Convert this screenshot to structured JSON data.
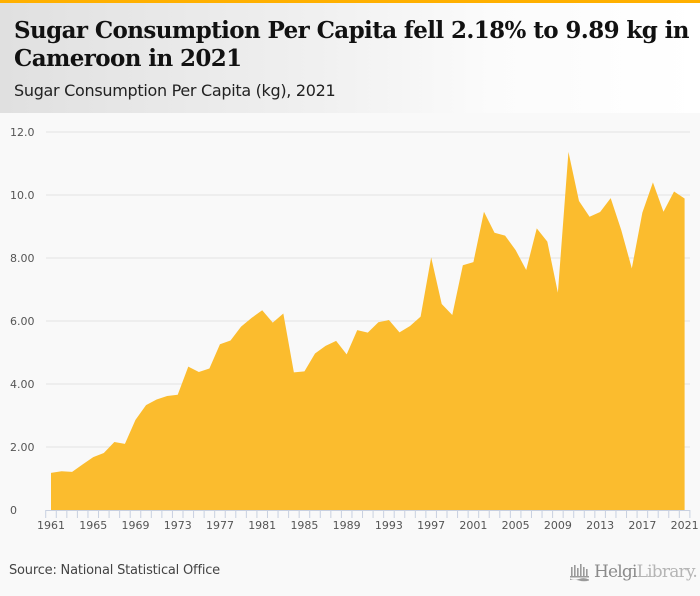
{
  "header": {
    "title": "Sugar Consumption Per Capita fell 2.18% to 9.89 kg in Cameroon in 2021",
    "subtitle": "Sugar Consumption Per Capita (kg), 2021"
  },
  "footer": {
    "source": "Source: National Statistical Office",
    "logo_primary": "Helgi",
    "logo_secondary": "Library."
  },
  "colors": {
    "accent_bar": "#ffb000",
    "area_fill": "#fbbc2e",
    "gridline": "#e2e2e2",
    "axis": "#c8d0e0",
    "tick_label": "#555555"
  },
  "chart_data": {
    "type": "area",
    "title": "Sugar Consumption Per Capita (kg), 2021",
    "xlabel": "",
    "ylabel": "",
    "ylim": [
      0,
      12
    ],
    "grid": true,
    "legend": "none",
    "y_ticks": [
      {
        "value": 0,
        "label": "0"
      },
      {
        "value": 2,
        "label": "2.00"
      },
      {
        "value": 4,
        "label": "4.00"
      },
      {
        "value": 6,
        "label": "6.00"
      },
      {
        "value": 8,
        "label": "8.00"
      },
      {
        "value": 10,
        "label": "10.0"
      },
      {
        "value": 12,
        "label": "12.0"
      }
    ],
    "x_tick_labels": [
      "1961",
      "1965",
      "1969",
      "1973",
      "1977",
      "1981",
      "1985",
      "1989",
      "1993",
      "1997",
      "2001",
      "2005",
      "2009",
      "2013",
      "2017",
      "2021"
    ],
    "x": [
      1961,
      1962,
      1963,
      1964,
      1965,
      1966,
      1967,
      1968,
      1969,
      1970,
      1971,
      1972,
      1973,
      1974,
      1975,
      1976,
      1977,
      1978,
      1979,
      1980,
      1981,
      1982,
      1983,
      1984,
      1985,
      1986,
      1987,
      1988,
      1989,
      1990,
      1991,
      1992,
      1993,
      1994,
      1995,
      1996,
      1997,
      1998,
      1999,
      2000,
      2001,
      2002,
      2003,
      2004,
      2005,
      2006,
      2007,
      2008,
      2009,
      2010,
      2011,
      2012,
      2013,
      2014,
      2015,
      2016,
      2017,
      2018,
      2019,
      2020,
      2021
    ],
    "series": [
      {
        "name": "Sugar Consumption Per Capita (kg)",
        "values": [
          1.18,
          1.23,
          1.21,
          1.45,
          1.68,
          1.81,
          2.16,
          2.1,
          2.86,
          3.33,
          3.51,
          3.62,
          3.66,
          4.55,
          4.38,
          4.49,
          5.26,
          5.38,
          5.82,
          6.1,
          6.34,
          5.95,
          6.24,
          4.37,
          4.4,
          4.97,
          5.21,
          5.37,
          4.94,
          5.71,
          5.63,
          5.96,
          6.03,
          5.64,
          5.84,
          6.14,
          8.02,
          6.54,
          6.19,
          7.77,
          7.87,
          9.47,
          8.8,
          8.71,
          8.25,
          7.62,
          8.94,
          8.52,
          6.9,
          11.37,
          9.81,
          9.31,
          9.46,
          9.9,
          8.89,
          7.67,
          9.44,
          10.4,
          9.47,
          10.11,
          9.89
        ]
      }
    ]
  }
}
